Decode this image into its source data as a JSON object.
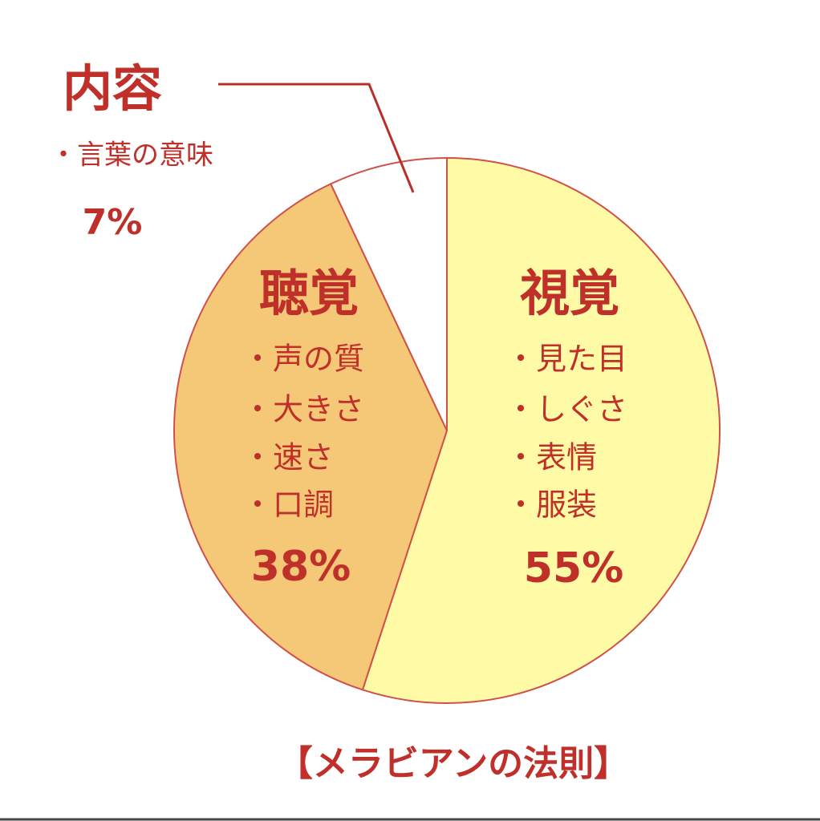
{
  "chart_data": {
    "type": "pie",
    "title": "【メラビアンの法則】",
    "categories": [
      "視覚",
      "聴覚",
      "内容"
    ],
    "values": [
      55,
      38,
      7
    ],
    "value_labels": [
      "55%",
      "38%",
      "7%"
    ],
    "colors": [
      "#fffaa6",
      "#f5c878",
      "#ffffff"
    ],
    "details": [
      [
        "・見た目",
        "・しぐさ",
        "・表情",
        "・服装"
      ],
      [
        "・声の質",
        "・大きさ",
        "・速さ",
        "・口調"
      ],
      [
        "・言葉の意味"
      ]
    ]
  }
}
